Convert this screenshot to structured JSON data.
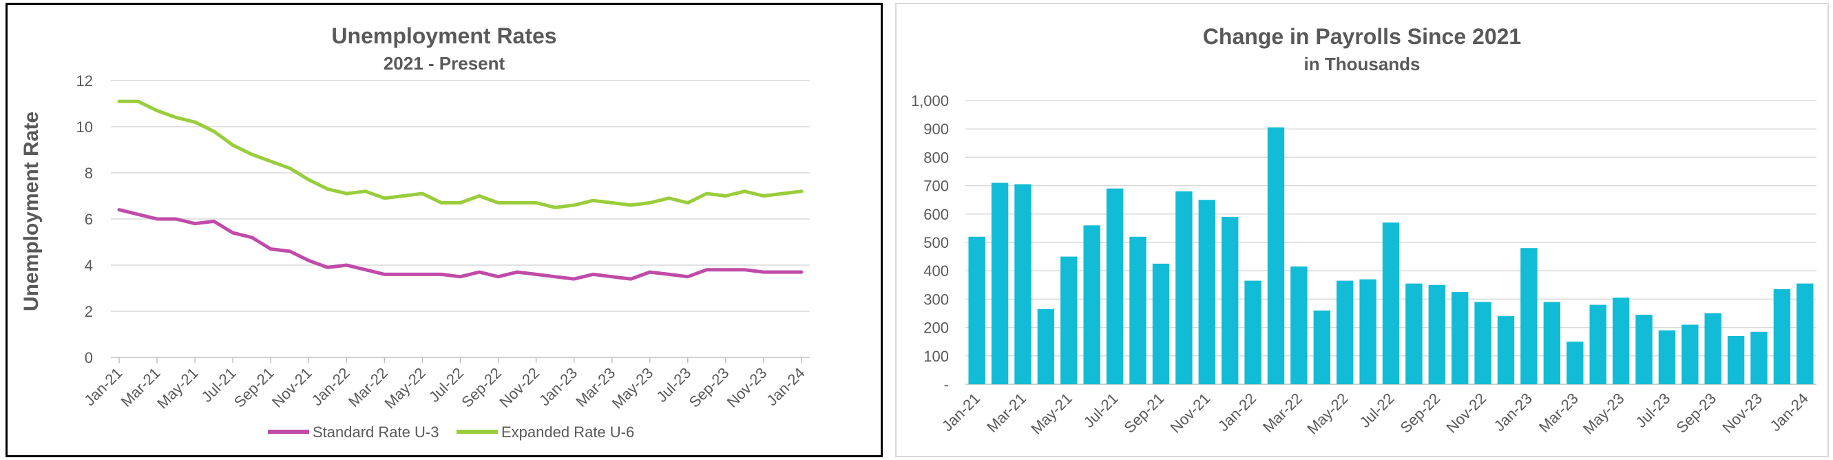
{
  "chart_data": [
    {
      "type": "line",
      "title": "Unemployment Rates",
      "subtitle": "2021 - Present",
      "ylabel": "Unemployment Rate",
      "xlabel": "",
      "ylim": [
        0,
        12
      ],
      "yticks": [
        "0",
        "2",
        "4",
        "6",
        "8",
        "10",
        "12"
      ],
      "xtick_labels": [
        "Jan-21",
        "Mar-21",
        "May-21",
        "Jul-21",
        "Sep-21",
        "Nov-21",
        "Jan-22",
        "Mar-22",
        "May-22",
        "Jul-22",
        "Sep-22",
        "Nov-22",
        "Jan-23",
        "Mar-23",
        "May-23",
        "Jul-23",
        "Sep-23",
        "Nov-23",
        "Jan-24"
      ],
      "grid": true,
      "legend": "bottom",
      "x": [
        "Jan-21",
        "Feb-21",
        "Mar-21",
        "Apr-21",
        "May-21",
        "Jun-21",
        "Jul-21",
        "Aug-21",
        "Sep-21",
        "Oct-21",
        "Nov-21",
        "Dec-21",
        "Jan-22",
        "Feb-22",
        "Mar-22",
        "Apr-22",
        "May-22",
        "Jun-22",
        "Jul-22",
        "Aug-22",
        "Sep-22",
        "Oct-22",
        "Nov-22",
        "Dec-22",
        "Jan-23",
        "Feb-23",
        "Mar-23",
        "Apr-23",
        "May-23",
        "Jun-23",
        "Jul-23",
        "Aug-23",
        "Sep-23",
        "Oct-23",
        "Nov-23",
        "Dec-23",
        "Jan-24"
      ],
      "series": [
        {
          "name": "Standard Rate U-3",
          "color": "#c04ba8",
          "values": [
            6.4,
            6.2,
            6.0,
            6.0,
            5.8,
            5.9,
            5.4,
            5.2,
            4.7,
            4.6,
            4.2,
            3.9,
            4.0,
            3.8,
            3.6,
            3.6,
            3.6,
            3.6,
            3.5,
            3.7,
            3.5,
            3.7,
            3.6,
            3.5,
            3.4,
            3.6,
            3.5,
            3.4,
            3.7,
            3.6,
            3.5,
            3.8,
            3.8,
            3.8,
            3.7,
            3.7,
            3.7
          ]
        },
        {
          "name": "Expanded Rate U-6",
          "color": "#9acd3c",
          "values": [
            11.1,
            11.1,
            10.7,
            10.4,
            10.2,
            9.8,
            9.2,
            8.8,
            8.5,
            8.2,
            7.7,
            7.3,
            7.1,
            7.2,
            6.9,
            7.0,
            7.1,
            6.7,
            6.7,
            7.0,
            6.7,
            6.7,
            6.7,
            6.5,
            6.6,
            6.8,
            6.7,
            6.6,
            6.7,
            6.9,
            6.7,
            7.1,
            7.0,
            7.2,
            7.0,
            7.1,
            7.2
          ]
        }
      ]
    },
    {
      "type": "bar",
      "title": "Change in Payrolls Since 2021",
      "subtitle": "in Thousands",
      "xlabel": "",
      "ylabel": "",
      "ylim": [
        0,
        1000
      ],
      "yticks": [
        "-",
        "100",
        "200",
        "300",
        "400",
        "500",
        "600",
        "700",
        "800",
        "900",
        "1,000"
      ],
      "xtick_labels": [
        "Jan-21",
        "Mar-21",
        "May-21",
        "Jul-21",
        "Sep-21",
        "Nov-21",
        "Jan-22",
        "Mar-22",
        "May-22",
        "Jul-22",
        "Sep-22",
        "Nov-22",
        "Jan-23",
        "Mar-23",
        "May-23",
        "Jul-23",
        "Sep-23",
        "Nov-23",
        "Jan-24"
      ],
      "grid": true,
      "color": "#12bcd6",
      "categories": [
        "Jan-21",
        "Feb-21",
        "Mar-21",
        "Apr-21",
        "May-21",
        "Jun-21",
        "Jul-21",
        "Aug-21",
        "Sep-21",
        "Oct-21",
        "Nov-21",
        "Dec-21",
        "Jan-22",
        "Feb-22",
        "Mar-22",
        "Apr-22",
        "May-22",
        "Jun-22",
        "Jul-22",
        "Aug-22",
        "Sep-22",
        "Oct-22",
        "Nov-22",
        "Dec-22",
        "Jan-23",
        "Feb-23",
        "Mar-23",
        "Apr-23",
        "May-23",
        "Jun-23",
        "Jul-23",
        "Aug-23",
        "Sep-23",
        "Oct-23",
        "Nov-23",
        "Dec-23",
        "Jan-24"
      ],
      "values": [
        520,
        710,
        705,
        265,
        450,
        560,
        690,
        520,
        425,
        680,
        650,
        590,
        365,
        905,
        415,
        260,
        365,
        370,
        570,
        355,
        350,
        325,
        290,
        240,
        480,
        290,
        150,
        280,
        305,
        245,
        190,
        210,
        250,
        170,
        185,
        335,
        355
      ]
    }
  ]
}
